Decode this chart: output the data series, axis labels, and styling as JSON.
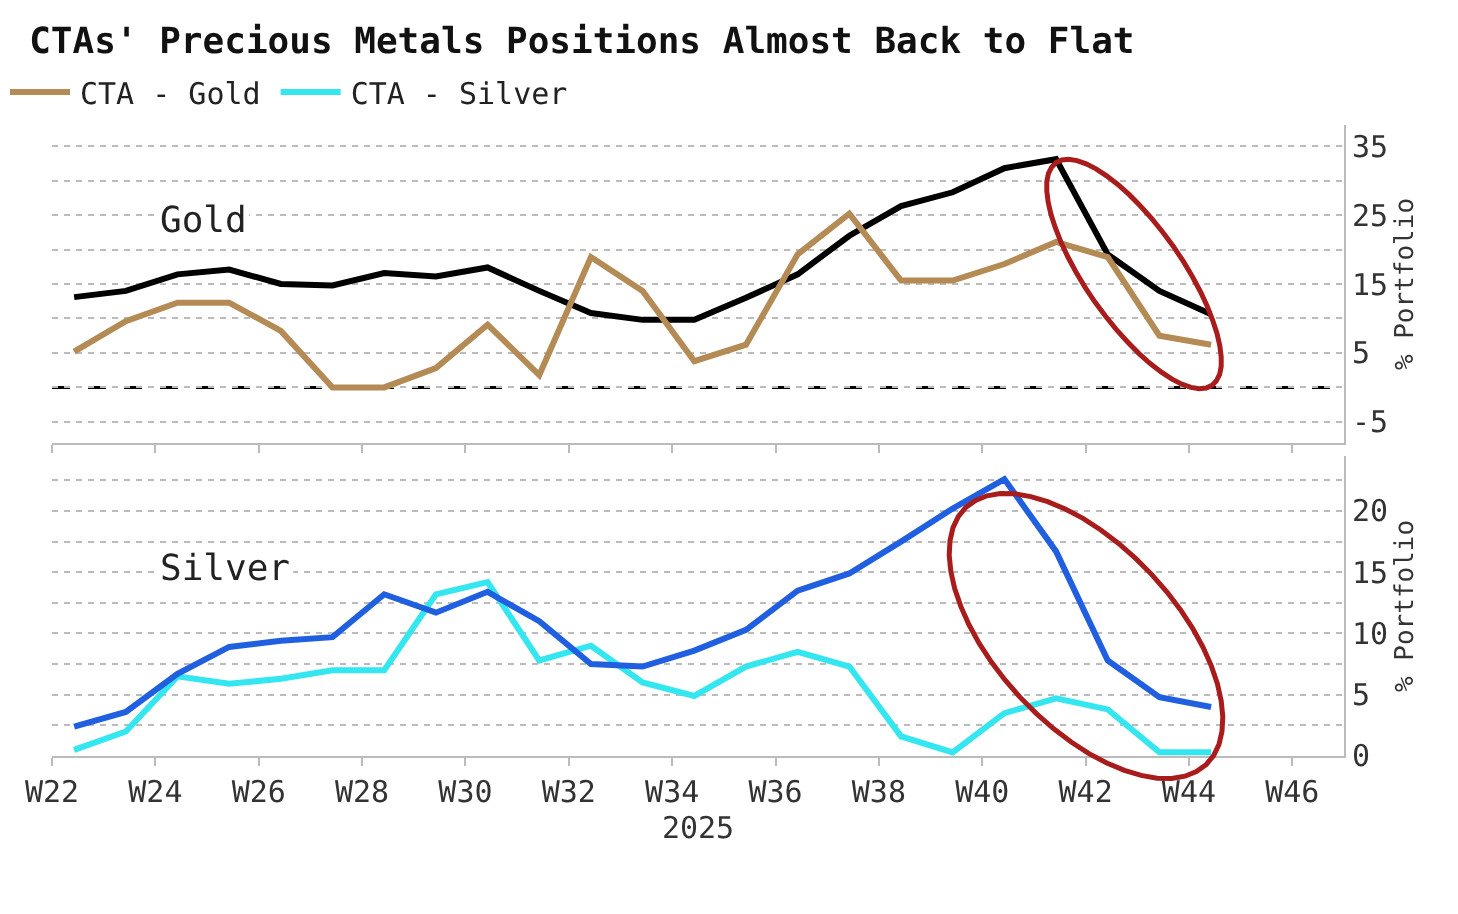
{
  "chart_data": [
    {
      "type": "line",
      "title": "CTAs' Precious Metals Positions Almost Back to Flat",
      "ylabel": "% Portfolio",
      "annotations": [
        "Gold"
      ],
      "legend": "top",
      "grid": "y",
      "tick_labels": "y",
      "line_style": "solid",
      "x": [
        "2025-05-29",
        "2025-06-05",
        "2025-06-12",
        "2025-06-19",
        "2025-06-26",
        "2025-07-03",
        "2025-07-10",
        "2025-07-17",
        "2025-07-24",
        "2025-07-31",
        "2025-08-07",
        "2025-08-14",
        "2025-08-21",
        "2025-08-28",
        "2025-09-04",
        "2025-09-11",
        "2025-09-18",
        "2025-09-25",
        "2025-10-02",
        "2025-10-09",
        "2025-10-16",
        "2025-10-23",
        "2025-10-30"
      ],
      "xlim": [
        "2025-05-26",
        "2025-11-17"
      ],
      "xticks": [
        {
          "value": "2025-05-26",
          "label": null
        },
        {
          "value": "2025-06-09",
          "label": null
        },
        {
          "value": "2025-06-23",
          "label": null
        },
        {
          "value": "2025-07-07",
          "label": null
        },
        {
          "value": "2025-07-21",
          "label": null
        },
        {
          "value": "2025-08-04",
          "label": null
        },
        {
          "value": "2025-08-18",
          "label": null
        },
        {
          "value": "2025-09-01",
          "label": null
        },
        {
          "value": "2025-09-15",
          "label": null
        },
        {
          "value": "2025-09-29",
          "label": null
        },
        {
          "value": "2025-10-13",
          "label": null
        },
        {
          "value": "2025-10-27",
          "label": null
        },
        {
          "value": "2025-11-10",
          "label": null
        }
      ],
      "ylim": [
        -8,
        38
      ],
      "yticks": [
        -5,
        {
          "value": 0,
          "label": null
        },
        5,
        {
          "value": 10,
          "label": null
        },
        15,
        {
          "value": 20,
          "label": null
        },
        25,
        {
          "value": 30,
          "label": null
        },
        35
      ],
      "ref_lines": [
        {
          "axis": "y",
          "value": 0,
          "color": "#000000",
          "line_style": "dashed"
        }
      ],
      "series": [
        {
          "color": "#000000",
          "values": [
            13.1,
            14,
            16.4,
            17.1,
            15,
            14.8,
            16.6,
            16.1,
            17.4,
            14,
            10.8,
            9.8,
            9.8,
            13,
            16.4,
            22,
            26.3,
            28.3,
            31.8,
            33.1,
            19.3,
            14,
            10.6
          ]
        },
        {
          "name": "CTA - Gold",
          "color": "#b48a55",
          "values": [
            5.2,
            9.6,
            12.3,
            12.3,
            8.2,
            0,
            0,
            2.8,
            9.1,
            1.8,
            18.9,
            14,
            3.8,
            6.2,
            19.3,
            25.2,
            15.5,
            15.5,
            17.9,
            21.1,
            18.9,
            7.5,
            6.2
          ]
        }
      ]
    },
    {
      "type": "line",
      "ylabel": "% Portfolio",
      "xlabel": "2025",
      "annotations": [
        "Silver"
      ],
      "legend": "top",
      "grid": "y",
      "line_style": "solid",
      "x": [
        "2025-05-29",
        "2025-06-05",
        "2025-06-12",
        "2025-06-19",
        "2025-06-26",
        "2025-07-03",
        "2025-07-10",
        "2025-07-17",
        "2025-07-24",
        "2025-07-31",
        "2025-08-07",
        "2025-08-14",
        "2025-08-21",
        "2025-08-28",
        "2025-09-04",
        "2025-09-11",
        "2025-09-18",
        "2025-09-25",
        "2025-10-02",
        "2025-10-09",
        "2025-10-16",
        "2025-10-23",
        "2025-10-30"
      ],
      "xlim": [
        "2025-05-26",
        "2025-11-17"
      ],
      "xticks": [
        {
          "value": "2025-05-26",
          "label": "W22"
        },
        {
          "value": "2025-06-09",
          "label": "W24"
        },
        {
          "value": "2025-06-23",
          "label": "W26"
        },
        {
          "value": "2025-07-07",
          "label": "W28"
        },
        {
          "value": "2025-07-21",
          "label": "W30"
        },
        {
          "value": "2025-08-04",
          "label": "W32"
        },
        {
          "value": "2025-08-18",
          "label": "W34"
        },
        {
          "value": "2025-09-01",
          "label": "W36"
        },
        {
          "value": "2025-09-15",
          "label": "W38"
        },
        {
          "value": "2025-09-29",
          "label": "W40"
        },
        {
          "value": "2025-10-13",
          "label": "W42"
        },
        {
          "value": "2025-10-27",
          "label": "W44"
        },
        {
          "value": "2025-11-10",
          "label": "W46"
        }
      ],
      "ylim": [
        0,
        24.5
      ],
      "yticks": [
        0,
        {
          "value": 2.5,
          "label": null
        },
        5,
        {
          "value": 7.5,
          "label": null
        },
        10,
        {
          "value": 12.5,
          "label": null
        },
        15,
        {
          "value": 17.5,
          "label": null
        },
        20,
        {
          "value": 22.5,
          "label": null
        }
      ],
      "series": [
        {
          "name": "CTA - Silver",
          "color": "#33e6f0",
          "values": [
            0.5,
            2,
            6.5,
            5.9,
            6.3,
            7,
            7,
            13.2,
            14.2,
            7.8,
            9,
            6,
            4.9,
            7.3,
            8.5,
            7.3,
            1.6,
            0.3,
            3.5,
            4.7,
            3.8,
            0.3,
            0.3
          ]
        },
        {
          "color": "#2060e0",
          "values": [
            2.4,
            3.6,
            6.7,
            8.9,
            9.4,
            9.7,
            13.2,
            11.7,
            13.4,
            11,
            7.5,
            7.3,
            8.6,
            10.3,
            13.5,
            14.9,
            17.5,
            20.2,
            22.6,
            16.7,
            7.8,
            4.8,
            4
          ]
        }
      ]
    }
  ]
}
